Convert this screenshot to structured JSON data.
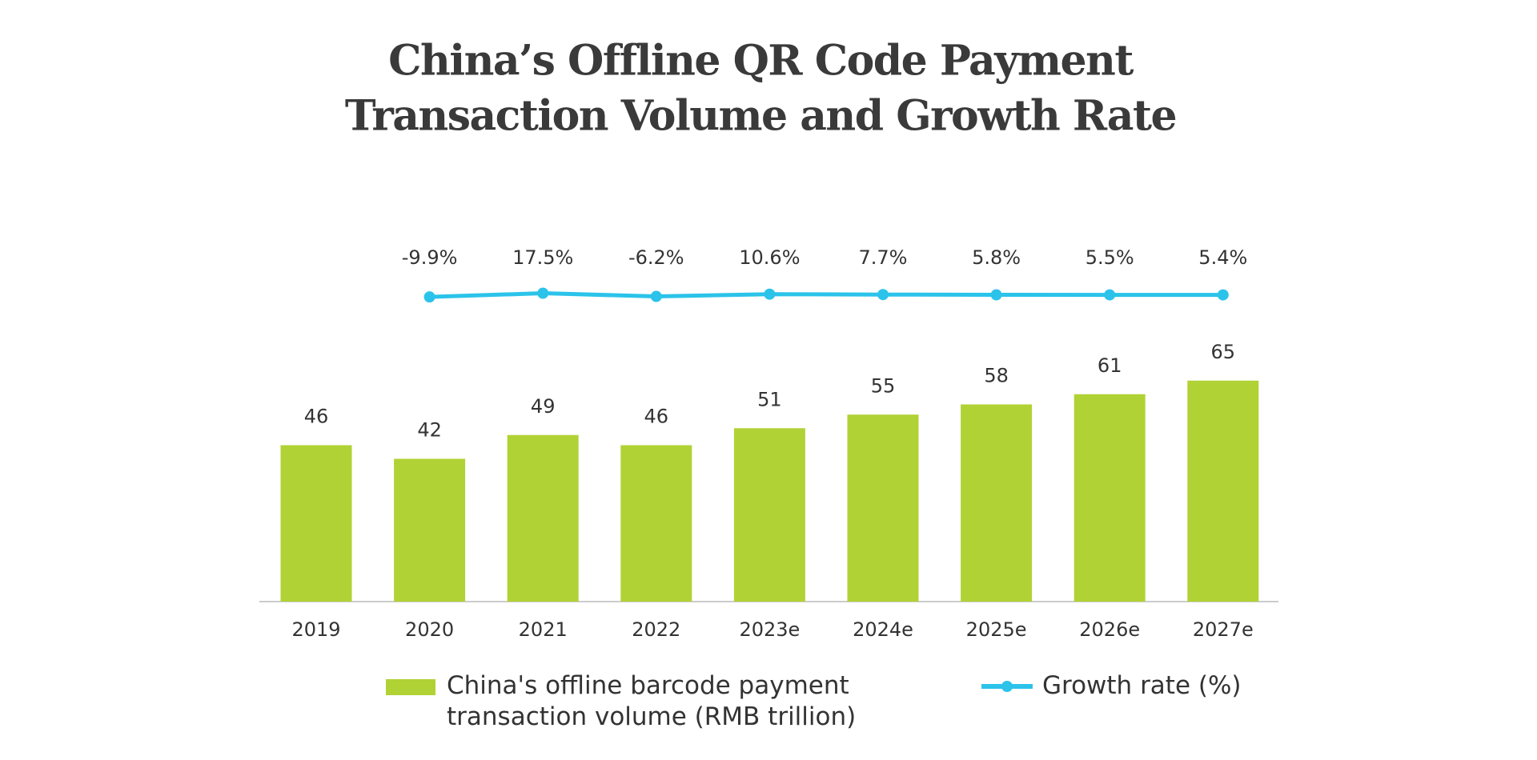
{
  "chart_data": {
    "type": "bar_line",
    "title": [
      "China’s Offline QR Code Payment",
      "Transaction Volume and Growth Rate"
    ],
    "categories": [
      "2019",
      "2020",
      "2021",
      "2022",
      "2023e",
      "2024e",
      "2025e",
      "2026e",
      "2027e"
    ],
    "series": [
      {
        "name": "China's offline barcode payment transaction volume (RMB trillion)",
        "color": "#b1d235",
        "type": "bar",
        "values": [
          46,
          42,
          49,
          46,
          51,
          55,
          58,
          61,
          65
        ]
      },
      {
        "name": "Growth rate (%)",
        "color": "#2bc3ea",
        "type": "line",
        "axis": "y2",
        "values": [
          null,
          -9.9,
          17.5,
          -6.2,
          10.6,
          7.7,
          5.8,
          5.5,
          5.4
        ],
        "value_labels": [
          null,
          "-9.9%",
          "17.5%",
          "-6.2%",
          "10.6%",
          "7.7%",
          "5.8%",
          "5.5%",
          "5.4%"
        ]
      }
    ],
    "ylim": [
      0,
      100
    ],
    "y2lim": [
      -2250,
      250
    ],
    "grid": false
  }
}
